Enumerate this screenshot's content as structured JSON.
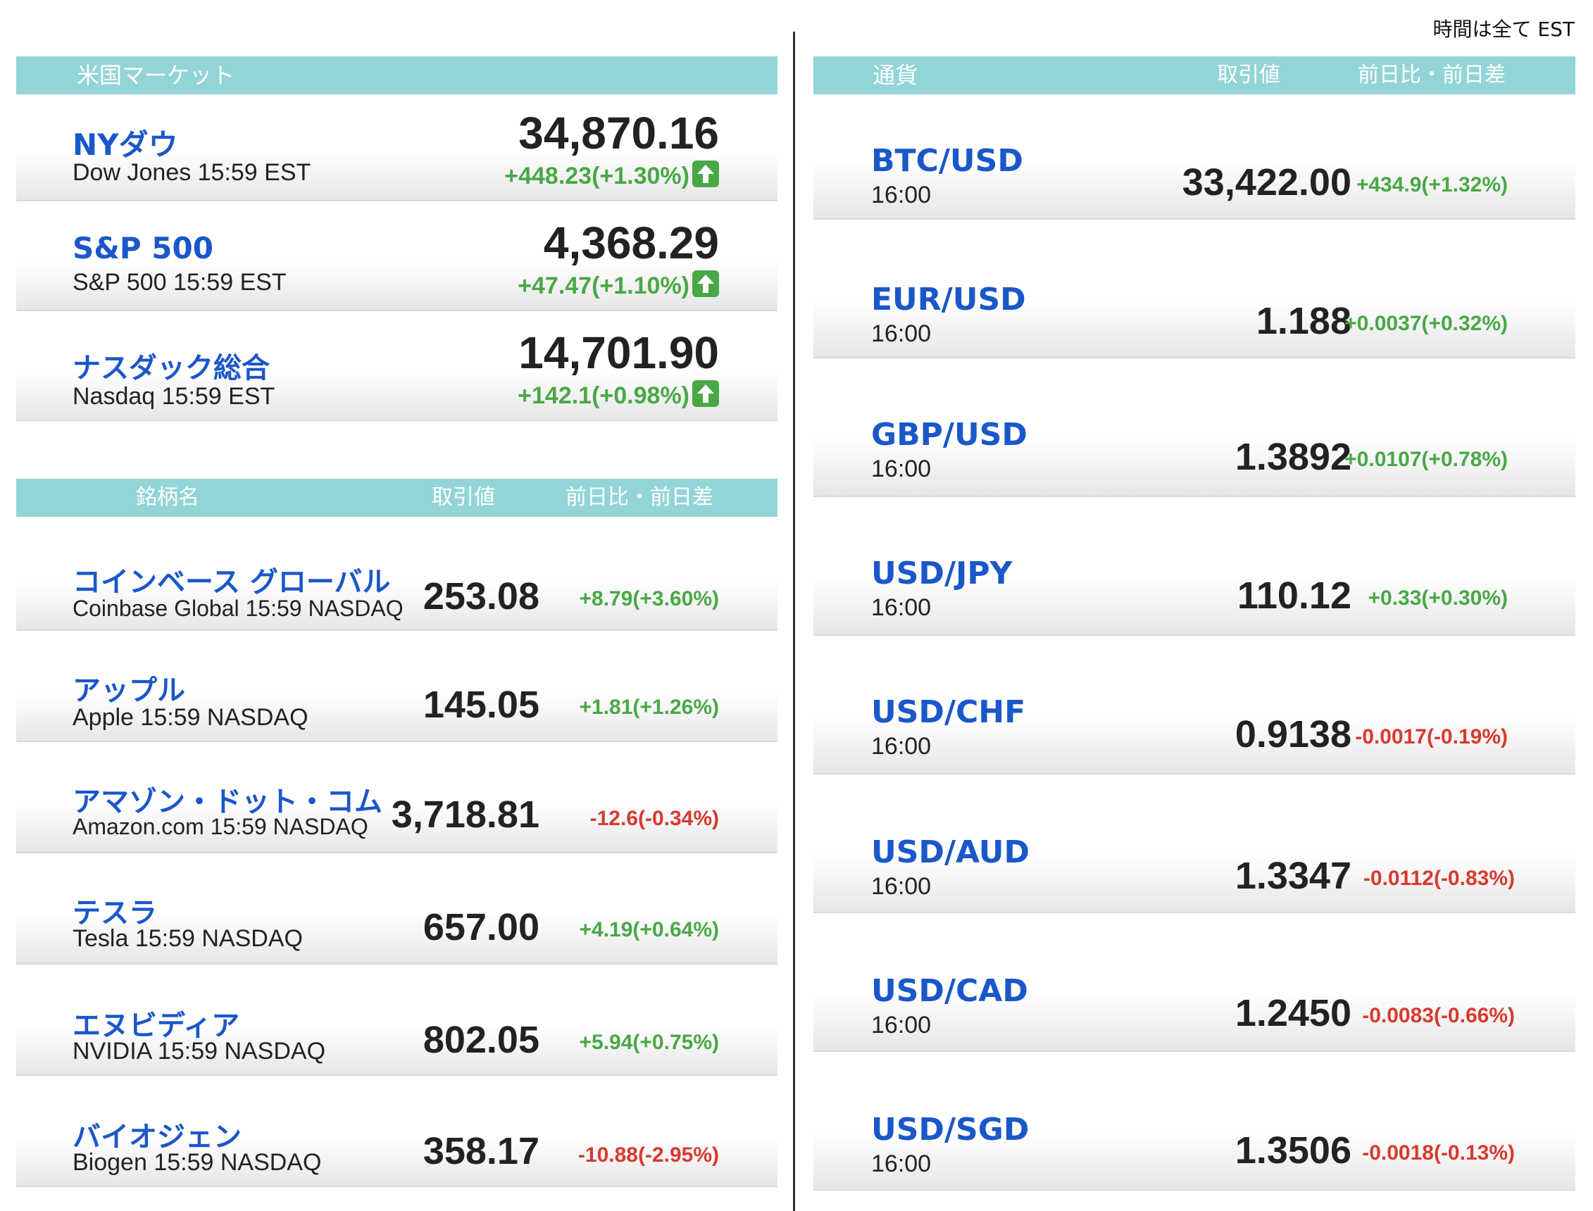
{
  "tz_note": "時間は全て EST",
  "us_market": {
    "header": "米国マーケット",
    "items": [
      {
        "name": "NYダウ",
        "sub": "Dow Jones 15:59 EST",
        "value": "34,870.16",
        "change": "+448.23(+1.30%)",
        "direction": "up"
      },
      {
        "name": "S&P 500",
        "sub": "S&P 500 15:59 EST",
        "value": "4,368.29",
        "change": "+47.47(+1.10%)",
        "direction": "up"
      },
      {
        "name": "ナスダック総合",
        "sub": "Nasdaq 15:59 EST",
        "value": "14,701.90",
        "change": "+142.1(+0.98%)",
        "direction": "up"
      }
    ]
  },
  "stocks": {
    "header": {
      "name": "銘柄名",
      "value": "取引値",
      "change": "前日比・前日差"
    },
    "items": [
      {
        "name": "コインベース グローバル",
        "sub": "Coinbase Global 15:59  NASDAQ",
        "value": "253.08",
        "change": "+8.79(+3.60%)",
        "direction": "up"
      },
      {
        "name": "アップル",
        "sub": "Apple 15:59  NASDAQ",
        "value": "145.05",
        "change": "+1.81(+1.26%)",
        "direction": "up"
      },
      {
        "name": "アマゾン・ドット・コム",
        "sub": "Amazon.com 15:59  NASDAQ",
        "value": "3,718.81",
        "change": "-12.6(-0.34%)",
        "direction": "down"
      },
      {
        "name": "テスラ",
        "sub": "Tesla 15:59  NASDAQ",
        "value": "657.00",
        "change": "+4.19(+0.64%)",
        "direction": "up"
      },
      {
        "name": "エヌビディア",
        "sub": "NVIDIA 15:59  NASDAQ",
        "value": "802.05",
        "change": "+5.94(+0.75%)",
        "direction": "up"
      },
      {
        "name": "バイオジェン",
        "sub": "Biogen 15:59  NASDAQ",
        "value": "358.17",
        "change": "-10.88(-2.95%)",
        "direction": "down"
      }
    ]
  },
  "currency": {
    "header": {
      "name": "通貨",
      "value": "取引値",
      "change": "前日比・前日差"
    },
    "items": [
      {
        "name": "BTC/USD",
        "sub": "16:00",
        "value": "33,422.00",
        "change": "+434.9(+1.32%)",
        "direction": "up"
      },
      {
        "name": "EUR/USD",
        "sub": "16:00",
        "value": "1.188",
        "change": "+0.0037(+0.32%)",
        "direction": "up"
      },
      {
        "name": "GBP/USD",
        "sub": "16:00",
        "value": "1.3892",
        "change": "+0.0107(+0.78%)",
        "direction": "up"
      },
      {
        "name": "USD/JPY",
        "sub": "16:00",
        "value": "110.12",
        "change": "+0.33(+0.30%)",
        "direction": "up"
      },
      {
        "name": "USD/CHF",
        "sub": "16:00",
        "value": "0.9138",
        "change": "-0.0017(-0.19%)",
        "direction": "down"
      },
      {
        "name": "USD/AUD",
        "sub": "16:00",
        "value": "1.3347",
        "change": "-0.0112(-0.83%)",
        "direction": "down"
      },
      {
        "name": "USD/CAD",
        "sub": "16:00",
        "value": "1.2450",
        "change": "-0.0083(-0.66%)",
        "direction": "down"
      },
      {
        "name": "USD/SGD",
        "sub": "16:00",
        "value": "1.3506",
        "change": "-0.0018(-0.13%)",
        "direction": "down"
      }
    ]
  },
  "colors": {
    "header_bg": "#93d5d7",
    "name": "#1a57c9",
    "up": "#49a846",
    "down": "#d73a2e"
  },
  "icons": {
    "up_arrow": "arrow-up-box-icon"
  }
}
